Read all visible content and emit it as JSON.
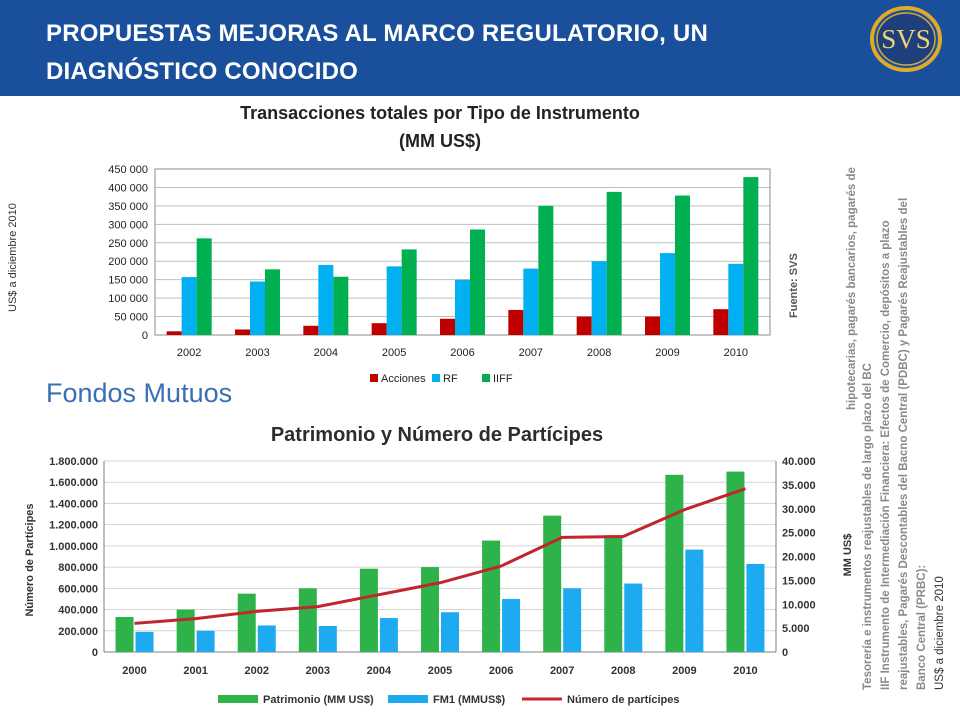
{
  "header": {
    "title_line1": "PROPUESTAS MEJORAS AL MARCO REGULATORIO, UN",
    "title_line2": "DIAGNÓSTICO CONOCIDO",
    "logo_text": "SVS",
    "bg_color": "#1a4f9c"
  },
  "section_title": "Fondos Mutuos",
  "side_notes": {
    "left_vertical": "US$ a diciembre 2010",
    "fuente": "Fuente: SVS",
    "note_line1": "hipotecarias, pagarés bancarios, pagarés de",
    "note_line2": "Tesorería e instrumentos reajustables de largo plazo del BC",
    "note_line3": "IIF Instrumento de Intermediación Financiera: Efectos de Comercio, depósitos a plazo",
    "note_line4": "reajustables, Pagarés Descontables del Bacno Central (PDBC) y Pagarés Reajustables del",
    "note_line5": "Banco Central (PRBC):",
    "note_line6": "US$ a diciembre 2010"
  },
  "chart_data": [
    {
      "type": "bar",
      "title": "Transacciones totales por Tipo de Instrumento",
      "subtitle": "(MM US$)",
      "categories": [
        "2002",
        "2003",
        "2004",
        "2005",
        "2006",
        "2007",
        "2008",
        "2009",
        "2010"
      ],
      "ylim": [
        0,
        450000
      ],
      "yticks": [
        0,
        50000,
        100000,
        150000,
        200000,
        250000,
        300000,
        350000,
        400000,
        450000
      ],
      "ytick_labels": [
        "0",
        "50 000",
        "100 000",
        "150 000",
        "200 000",
        "250 000",
        "300 000",
        "350 000",
        "400 000",
        "450 000"
      ],
      "grid": true,
      "legend": "bottom",
      "series": [
        {
          "name": "Acciones",
          "color": "#c00000",
          "values": [
            10000,
            15000,
            25000,
            32000,
            44000,
            68000,
            50000,
            50000,
            70000
          ]
        },
        {
          "name": "RF",
          "color": "#00b0f0",
          "values": [
            157000,
            145000,
            190000,
            186000,
            150000,
            180000,
            200000,
            222000,
            193000
          ]
        },
        {
          "name": "IIFF",
          "color": "#00b050",
          "values": [
            262000,
            178000,
            158000,
            232000,
            286000,
            350000,
            388000,
            378000,
            428000
          ]
        }
      ]
    },
    {
      "type": "bar",
      "title": "Patrimonio y Número de Partícipes",
      "ylabel": "Número de Partícipes",
      "y2label": "MM US$",
      "categories": [
        "2000",
        "2001",
        "2002",
        "2003",
        "2004",
        "2005",
        "2006",
        "2007",
        "2008",
        "2009",
        "2010"
      ],
      "ylim": [
        0,
        1800000
      ],
      "yticks": [
        0,
        200000,
        400000,
        600000,
        800000,
        1000000,
        1200000,
        1400000,
        1600000,
        1800000
      ],
      "ytick_labels": [
        "0",
        "200.000",
        "400.000",
        "600.000",
        "800.000",
        "1.000.000",
        "1.200.000",
        "1.400.000",
        "1.600.000",
        "1.800.000"
      ],
      "y2lim": [
        0,
        40000
      ],
      "y2ticks": [
        0,
        5000,
        10000,
        15000,
        20000,
        25000,
        30000,
        35000,
        40000
      ],
      "y2tick_labels": [
        "0",
        "5.000",
        "10.000",
        "15.000",
        "20.000",
        "25.000",
        "30.000",
        "35.000",
        "40.000"
      ],
      "grid": true,
      "legend": "bottom",
      "series": [
        {
          "name": "Patrimonio (MM US$)",
          "color": "#2db34a",
          "kind": "bar",
          "values": [
            330000,
            400000,
            550000,
            600000,
            785000,
            800000,
            1050000,
            1285000,
            1100000,
            1670000,
            1700000
          ]
        },
        {
          "name": "FM1 (MMUS$)",
          "color": "#1eaaf1",
          "kind": "bar",
          "values": [
            190000,
            200000,
            250000,
            245000,
            320000,
            375000,
            500000,
            600000,
            645000,
            965000,
            830000
          ]
        },
        {
          "name": "Número de partícipes",
          "color": "#c0272d",
          "kind": "line",
          "axis": "y2",
          "values": [
            6000,
            7000,
            8500,
            9500,
            12000,
            14500,
            18000,
            24000,
            24200,
            29800,
            34200
          ]
        }
      ]
    }
  ]
}
